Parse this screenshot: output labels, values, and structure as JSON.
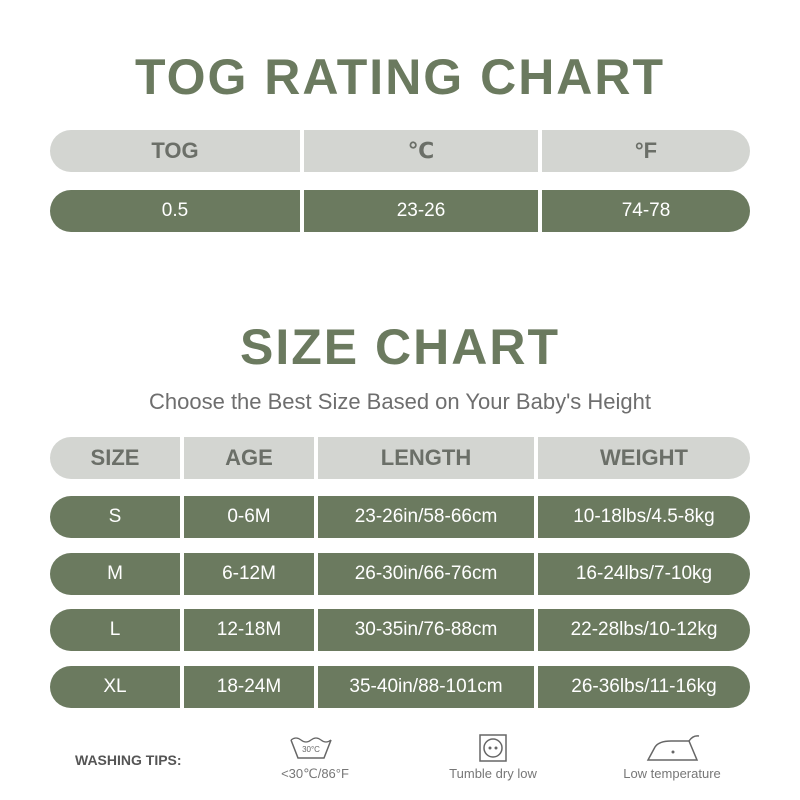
{
  "tog_chart": {
    "title": "TOG RATING CHART",
    "header": [
      "TOG",
      "℃",
      "°F"
    ],
    "row": [
      "0.5",
      "23-26",
      "74-78"
    ]
  },
  "size_chart": {
    "title": "SIZE CHART",
    "subtitle": "Choose the Best Size Based on Your Baby's Height",
    "header": [
      "SIZE",
      "AGE",
      "LENGTH",
      "WEIGHT"
    ],
    "rows": [
      [
        "S",
        "0-6M",
        "23-26in/58-66cm",
        "10-18lbs/4.5-8kg"
      ],
      [
        "M",
        "6-12M",
        "26-30in/66-76cm",
        "16-24lbs/7-10kg"
      ],
      [
        "L",
        "12-18M",
        "30-35in/76-88cm",
        "22-28lbs/10-12kg"
      ],
      [
        "XL",
        "18-24M",
        "35-40in/88-101cm",
        "26-36lbs/11-16kg"
      ]
    ]
  },
  "washing_tips": {
    "label": "WASHING TIPS:",
    "items": [
      {
        "icon_text": "30°C",
        "caption": "<30℃/86°F"
      },
      {
        "caption": "Tumble dry low"
      },
      {
        "caption": "Low temperature"
      }
    ]
  }
}
